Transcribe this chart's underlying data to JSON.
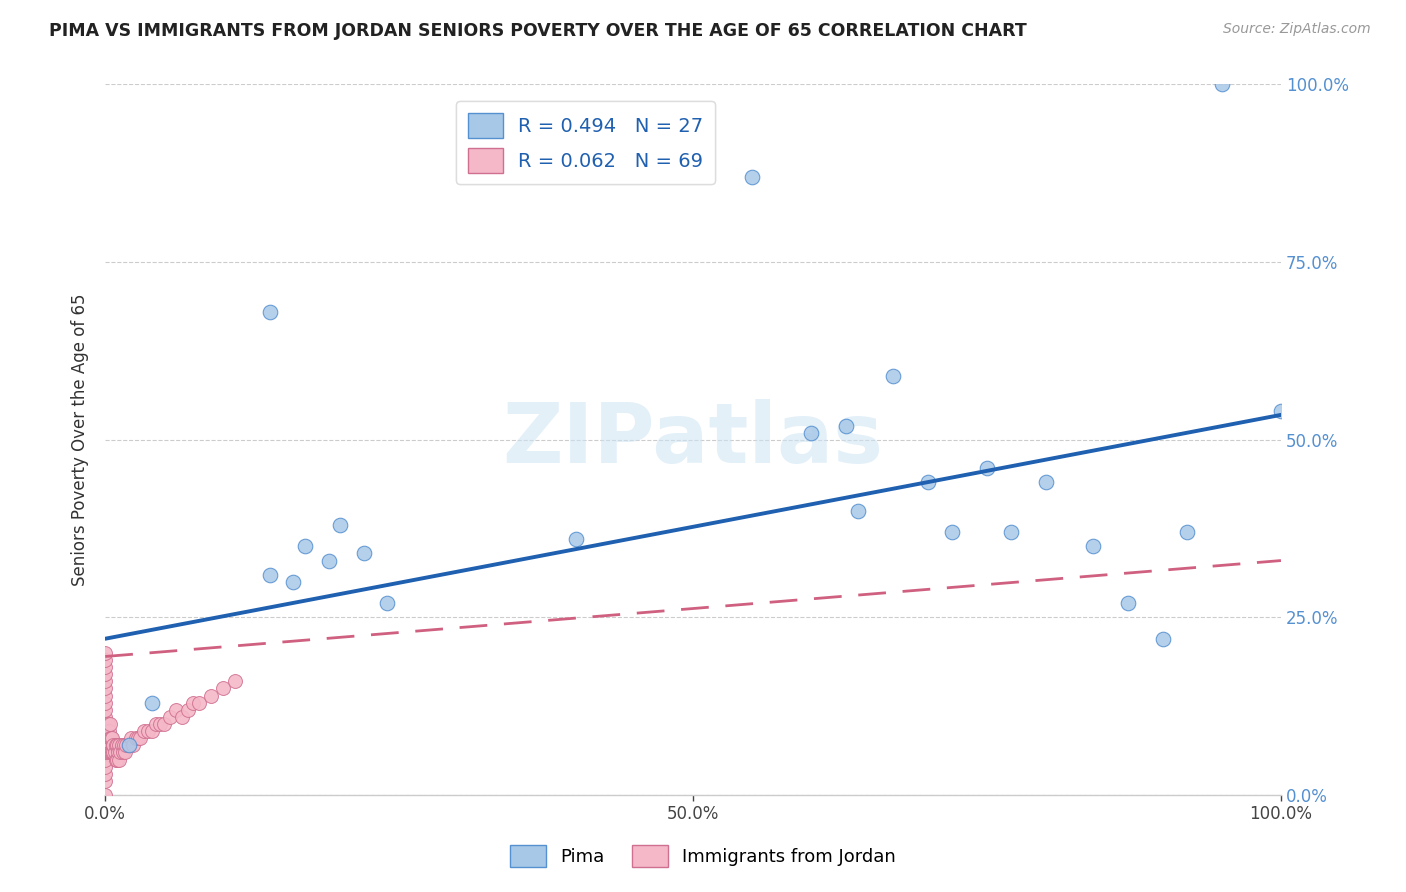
{
  "title": "PIMA VS IMMIGRANTS FROM JORDAN SENIORS POVERTY OVER THE AGE OF 65 CORRELATION CHART",
  "source": "Source: ZipAtlas.com",
  "ylabel": "Seniors Poverty Over the Age of 65",
  "pima_R": 0.494,
  "pima_N": 27,
  "jordan_R": 0.062,
  "jordan_N": 69,
  "pima_color": "#a8c8e8",
  "pima_edge_color": "#5590d0",
  "pima_line_color": "#2060b0",
  "jordan_color": "#f5b8c8",
  "jordan_edge_color": "#d07090",
  "jordan_line_color": "#d06080",
  "pima_x": [
    0.02,
    0.04,
    0.14,
    0.14,
    0.16,
    0.17,
    0.19,
    0.2,
    0.22,
    0.24,
    0.4,
    0.55,
    0.6,
    0.63,
    0.64,
    0.67,
    0.7,
    0.72,
    0.75,
    0.77,
    0.8,
    0.84,
    0.87,
    0.9,
    0.92,
    0.95,
    1.0
  ],
  "pima_y": [
    0.07,
    0.13,
    0.68,
    0.31,
    0.3,
    0.35,
    0.33,
    0.38,
    0.34,
    0.27,
    0.36,
    0.87,
    0.51,
    0.52,
    0.4,
    0.59,
    0.44,
    0.37,
    0.46,
    0.37,
    0.44,
    0.35,
    0.27,
    0.22,
    0.37,
    1.0,
    0.54
  ],
  "jordan_x": [
    0.0,
    0.0,
    0.0,
    0.0,
    0.0,
    0.0,
    0.0,
    0.0,
    0.0,
    0.0,
    0.0,
    0.0,
    0.0,
    0.0,
    0.0,
    0.0,
    0.0,
    0.0,
    0.0,
    0.0,
    0.002,
    0.002,
    0.002,
    0.003,
    0.003,
    0.004,
    0.004,
    0.004,
    0.005,
    0.005,
    0.006,
    0.006,
    0.007,
    0.007,
    0.008,
    0.009,
    0.009,
    0.01,
    0.01,
    0.011,
    0.012,
    0.012,
    0.013,
    0.014,
    0.015,
    0.016,
    0.017,
    0.018,
    0.02,
    0.022,
    0.024,
    0.026,
    0.028,
    0.03,
    0.033,
    0.036,
    0.04,
    0.043,
    0.047,
    0.05,
    0.055,
    0.06,
    0.065,
    0.07,
    0.075,
    0.08,
    0.09,
    0.1,
    0.11
  ],
  "jordan_y": [
    0.0,
    0.02,
    0.03,
    0.04,
    0.05,
    0.06,
    0.07,
    0.08,
    0.09,
    0.1,
    0.11,
    0.12,
    0.13,
    0.14,
    0.15,
    0.16,
    0.17,
    0.18,
    0.19,
    0.2,
    0.06,
    0.08,
    0.1,
    0.07,
    0.09,
    0.06,
    0.08,
    0.1,
    0.06,
    0.08,
    0.06,
    0.08,
    0.06,
    0.07,
    0.06,
    0.05,
    0.07,
    0.05,
    0.07,
    0.06,
    0.05,
    0.07,
    0.06,
    0.07,
    0.06,
    0.07,
    0.06,
    0.07,
    0.07,
    0.08,
    0.07,
    0.08,
    0.08,
    0.08,
    0.09,
    0.09,
    0.09,
    0.1,
    0.1,
    0.1,
    0.11,
    0.12,
    0.11,
    0.12,
    0.13,
    0.13,
    0.14,
    0.15,
    0.16
  ],
  "pima_line_x0": 0.0,
  "pima_line_y0": 0.22,
  "pima_line_x1": 1.0,
  "pima_line_y1": 0.535,
  "jordan_line_x0": 0.0,
  "jordan_line_y0": 0.195,
  "jordan_line_x1": 1.0,
  "jordan_line_y1": 0.33,
  "watermark_text": "ZIPatlas",
  "background_color": "#ffffff",
  "grid_color": "#cccccc",
  "title_color": "#222222",
  "source_color": "#999999",
  "axis_label_color": "#333333",
  "right_tick_color": "#5590d0",
  "x_tick_labels": [
    "0.0%",
    "50.0%",
    "100.0%"
  ],
  "x_tick_positions": [
    0.0,
    0.5,
    1.0
  ],
  "y_tick_labels": [
    "0.0%",
    "25.0%",
    "50.0%",
    "75.0%",
    "100.0%"
  ],
  "y_tick_positions": [
    0.0,
    0.25,
    0.5,
    0.75,
    1.0
  ],
  "legend1_label1": "R = 0.494   N = 27",
  "legend1_label2": "R = 0.062   N = 69",
  "legend2_label1": "Pima",
  "legend2_label2": "Immigrants from Jordan"
}
